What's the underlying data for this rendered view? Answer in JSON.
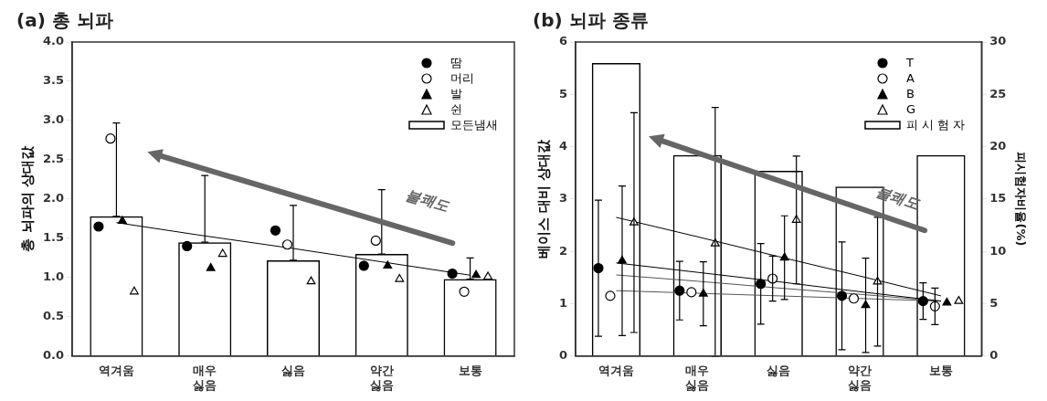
{
  "chart_data": [
    {
      "type": "bar",
      "title": "(a) 총 뇌파",
      "ylabel": "총 뇌파의 상대값",
      "categories": [
        "역겨움",
        "매우 싫음",
        "싫음",
        "약간 싫음",
        "보통"
      ],
      "ylim": [
        0,
        4
      ],
      "yticks": [
        {
          "value": 0,
          "label": "0.0"
        },
        0.5,
        {
          "value": 1,
          "label": "1.0"
        },
        1.5,
        {
          "value": 2,
          "label": "2.0"
        },
        2.5,
        {
          "value": 3,
          "label": "3.0"
        },
        3.5,
        {
          "value": 4,
          "label": "4.0"
        }
      ],
      "legend": "top right",
      "annotations": [
        "불쾌도"
      ],
      "series": [
        {
          "name": "땀",
          "type": "scatter",
          "marker": "circle",
          "color": "#000000",
          "x": [
            "역겨움",
            "매우 싫음",
            "싫음",
            "약간 싫음",
            "보통"
          ],
          "values": [
            1.65,
            1.4,
            1.6,
            1.15,
            1.05
          ]
        },
        {
          "name": "머리",
          "type": "scatter",
          "marker": "circle",
          "color": "#ffffff",
          "x": [
            "역겨움",
            "매우 싫음",
            "싫음",
            "약간 싫음",
            "보통"
          ],
          "values": [
            2.77,
            null,
            1.42,
            1.47,
            0.82
          ]
        },
        {
          "name": "발",
          "type": "scatter",
          "marker": "triangle",
          "color": "#000000",
          "x": [
            "역겨움",
            "매우 싫음",
            "싫음",
            "약간 싫음",
            "보통"
          ],
          "values": [
            1.72,
            1.12,
            null,
            1.15,
            1.03
          ]
        },
        {
          "name": "쉰",
          "type": "scatter",
          "marker": "triangle",
          "color": "#ffffff",
          "x": [
            "역겨움",
            "매우 싫음",
            "싫음",
            "약간 싫음",
            "보통"
          ],
          "values": [
            0.82,
            1.3,
            0.95,
            0.98,
            1.01
          ]
        },
        {
          "name": "모든냄새",
          "type": "bar",
          "color": "#000000",
          "values": [
            1.78,
            1.45,
            1.22,
            1.3,
            0.98
          ],
          "errors": [
            [
              1.78,
              2.97
            ],
            [
              1.45,
              2.3
            ],
            [
              1.22,
              1.92
            ],
            [
              1.3,
              2.12
            ],
            [
              0.98,
              1.25
            ]
          ]
        },
        {
          "type": "line",
          "color": "#000000",
          "values": [
            1.7,
            1.53,
            1.37,
            1.2,
            1.03
          ]
        }
      ]
    },
    {
      "type": "bar",
      "title": "(b) 뇌파 종류",
      "ylabel": "베이스 대비 상대값",
      "y2label": "피시험자비율(%)",
      "categories": [
        "역겨움",
        "매우 싫음",
        "싫음",
        "약간 싫음",
        "보통"
      ],
      "ylim": [
        0,
        6
      ],
      "yticks": [
        0,
        1,
        2,
        3,
        4,
        5,
        6
      ],
      "y2lim": [
        0,
        30
      ],
      "y2ticks": [
        0,
        5,
        10,
        15,
        20,
        25,
        30
      ],
      "legend": "top right",
      "annotations": [
        "불쾌도"
      ],
      "series": [
        {
          "name": "T",
          "type": "scatter",
          "marker": "circle",
          "color": "#000000",
          "x": [
            "역겨움",
            "매우 싫음",
            "싫음",
            "약간 싫음",
            "보통"
          ],
          "values": [
            1.68,
            1.25,
            1.38,
            1.15,
            1.05
          ],
          "errors": [
            1.3,
            0.56,
            0.77,
            1.03,
            0.35
          ]
        },
        {
          "name": "A",
          "type": "scatter",
          "marker": "circle",
          "color": "#ffffff",
          "x": [
            "역겨움",
            "매우 싫음",
            "싫음",
            "약간 싫음",
            "보통"
          ],
          "values": [
            1.15,
            1.22,
            1.48,
            1.1,
            0.95
          ],
          "errors": [
            null,
            null,
            0.43,
            null,
            0.35
          ]
        },
        {
          "name": "B",
          "type": "scatter",
          "marker": "triangle",
          "color": "#000000",
          "x": [
            "역겨움",
            "매우 싫음",
            "싫음",
            "약간 싫음",
            "보통"
          ],
          "values": [
            1.82,
            1.19,
            1.88,
            0.97,
            1.02
          ],
          "errors": [
            1.43,
            0.61,
            0.8,
            0.9,
            null
          ]
        },
        {
          "name": "G",
          "type": "scatter",
          "marker": "triangle",
          "color": "#ffffff",
          "x": [
            "역겨움",
            "매우 싫음",
            "싫음",
            "약간 싫음",
            "보통"
          ],
          "values": [
            2.55,
            2.15,
            2.6,
            1.42,
            1.05
          ],
          "errors": [
            2.1,
            [
              0,
              4.75
            ],
            1.22,
            1.23,
            null
          ]
        },
        {
          "name": "피 시 험 자",
          "type": "bar",
          "axis": "y2",
          "color": "#000000",
          "values": [
            28,
            19.2,
            17.7,
            16.2,
            19.2
          ]
        },
        {
          "type": "line",
          "color": "#000000",
          "values": [
            2.65,
            2.28,
            1.9,
            1.53,
            1.15
          ]
        },
        {
          "type": "line",
          "color": "#000000",
          "values": [
            1.78,
            1.6,
            1.42,
            1.23,
            1.05
          ]
        },
        {
          "type": "line",
          "color": "#555555",
          "values": [
            1.55,
            1.43,
            1.3,
            1.18,
            1.05
          ]
        },
        {
          "type": "line",
          "color": "#555555",
          "values": [
            1.25,
            1.2,
            1.15,
            1.1,
            1.05
          ]
        }
      ]
    }
  ]
}
